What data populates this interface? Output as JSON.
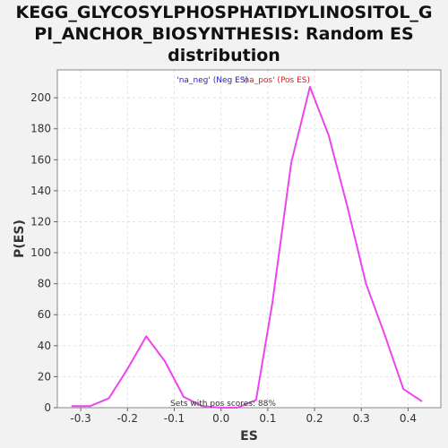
{
  "chart_data": {
    "type": "line",
    "title_lines": [
      "KEGG_GLYCOSYLPHOSPHATIDYLINOSITOL_G",
      "PI_ANCHOR_BIOSYNTHESIS: Random ES",
      "distribution"
    ],
    "xlabel": "ES",
    "ylabel": "P(ES)",
    "xlim": [
      -0.35,
      0.47
    ],
    "ylim": [
      0,
      218
    ],
    "x_ticks": [
      -0.3,
      -0.2,
      -0.1,
      0.0,
      0.1,
      0.2,
      0.3,
      0.4
    ],
    "x_tick_labels": [
      "-0.3",
      "-0.2",
      "-0.1",
      "0.0",
      "0.1",
      "0.2",
      "0.3",
      "0.4"
    ],
    "y_ticks": [
      0,
      20,
      40,
      60,
      80,
      100,
      120,
      140,
      160,
      180,
      200
    ],
    "y_tick_labels": [
      "0",
      "20",
      "40",
      "60",
      "80",
      "100",
      "120",
      "140",
      "160",
      "180",
      "200"
    ],
    "grid": true,
    "series": [
      {
        "color": "#ee44ee",
        "x": [
          -0.32,
          -0.28,
          -0.24,
          -0.2,
          -0.16,
          -0.12,
          -0.08,
          -0.04,
          0.0,
          0.035,
          0.075,
          0.11,
          0.15,
          0.19,
          0.23,
          0.27,
          0.31,
          0.35,
          0.39,
          0.43
        ],
        "y": [
          1,
          1,
          6,
          25,
          46,
          30,
          7,
          1,
          0,
          0,
          5,
          68,
          158,
          207,
          176,
          130,
          80,
          47,
          12,
          4
        ]
      }
    ],
    "legend": [
      {
        "text": "'na_neg' (Neg ES)",
        "color": "#2222cc"
      },
      {
        "text": "'na_pos' (Pos ES)",
        "color": "#cc2222"
      }
    ],
    "legend_placement": "top-center",
    "annotation": "Sets with pos scores: 88%"
  }
}
